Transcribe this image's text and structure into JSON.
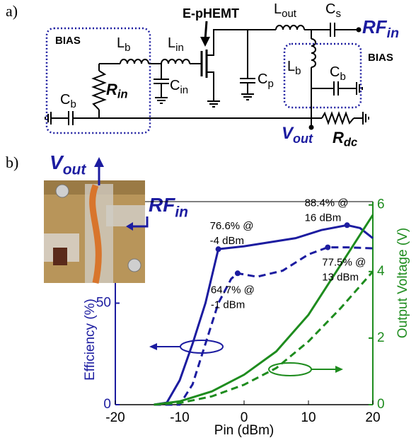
{
  "panel_a": {
    "label": "a)",
    "labels": [
      {
        "text": "BIAS"
      },
      {
        "text": "L",
        "sub": "b"
      },
      {
        "text": "R",
        "sub": "in"
      },
      {
        "text": "C",
        "sub": "b"
      },
      {
        "text": "L",
        "sub": "in"
      },
      {
        "text": "C",
        "sub": "in"
      },
      {
        "text": "E-pHEMT"
      },
      {
        "text": "L",
        "sub": "out"
      },
      {
        "text": "C",
        "sub": "s"
      },
      {
        "text": "RF",
        "sub": "in"
      },
      {
        "text": "C",
        "sub": "p"
      },
      {
        "text": "L",
        "sub": "b"
      },
      {
        "text": "C",
        "sub": "b"
      },
      {
        "text": "BIAS"
      },
      {
        "text": "V",
        "sub": "out"
      },
      {
        "text": "R",
        "sub": "dc"
      }
    ]
  },
  "panel_b": {
    "label": "b)",
    "inset_labels": [
      {
        "text": "V",
        "sub": "out"
      },
      {
        "text": "RF",
        "sub": "in"
      }
    ]
  },
  "chart_data": {
    "type": "line",
    "x_label": "Pin (dBm)",
    "y_label": "Efficiency (%)",
    "y2_label": "Output Voltage (V)",
    "xlim": [
      -20,
      20
    ],
    "xticks": [
      -20,
      -10,
      0,
      10,
      20
    ],
    "ylim": [
      0,
      100
    ],
    "yticks": [
      0,
      50
    ],
    "y2lim": [
      0,
      6.1
    ],
    "y2ticks": [
      0,
      2,
      4,
      6
    ],
    "series": [
      {
        "color": "#1c1ca0",
        "line_style": "solid",
        "axis": "y",
        "x": [
          -14,
          -12,
          -10,
          -8,
          -6,
          -4,
          0,
          4,
          8,
          12,
          16,
          18,
          20
        ],
        "values": [
          0,
          1,
          12,
          30,
          50,
          76.6,
          78,
          80,
          82,
          86,
          88.4,
          87,
          82
        ]
      },
      {
        "color": "#1c1ca0",
        "line_style": "dashed",
        "axis": "y",
        "x": [
          -14,
          -10,
          -8,
          -6,
          -4,
          -2,
          -1,
          2,
          6,
          10,
          13,
          16,
          20
        ],
        "values": [
          0,
          0,
          10,
          30,
          50,
          62,
          64.7,
          63,
          66,
          74,
          77.5,
          77.5,
          77
        ]
      },
      {
        "color": "#1e8c1e",
        "line_style": "solid",
        "axis": "y2",
        "x": [
          -14,
          -10,
          -5,
          0,
          5,
          10,
          15,
          20
        ],
        "values": [
          0,
          0.1,
          0.4,
          0.9,
          1.6,
          2.7,
          4.2,
          5.7
        ]
      },
      {
        "color": "#1e8c1e",
        "line_style": "dashed",
        "axis": "y2",
        "x": [
          -14,
          -10,
          -5,
          0,
          5,
          10,
          15,
          20
        ],
        "values": [
          0,
          0.05,
          0.25,
          0.6,
          1.1,
          1.9,
          2.9,
          4.0
        ]
      }
    ],
    "annotations": [
      {
        "lines": [
          "76.6% @",
          "-4 dBm"
        ],
        "x": -4,
        "y": 76.6
      },
      {
        "lines": [
          "88.4% @",
          "16 dBm"
        ],
        "x": 16,
        "y": 88.4
      },
      {
        "lines": [
          "64.7% @",
          "-1 dBm"
        ],
        "x": -1,
        "y": 64.7
      },
      {
        "lines": [
          "77.5% @",
          "13 dBm"
        ],
        "x": 13,
        "y": 77.5
      }
    ]
  }
}
